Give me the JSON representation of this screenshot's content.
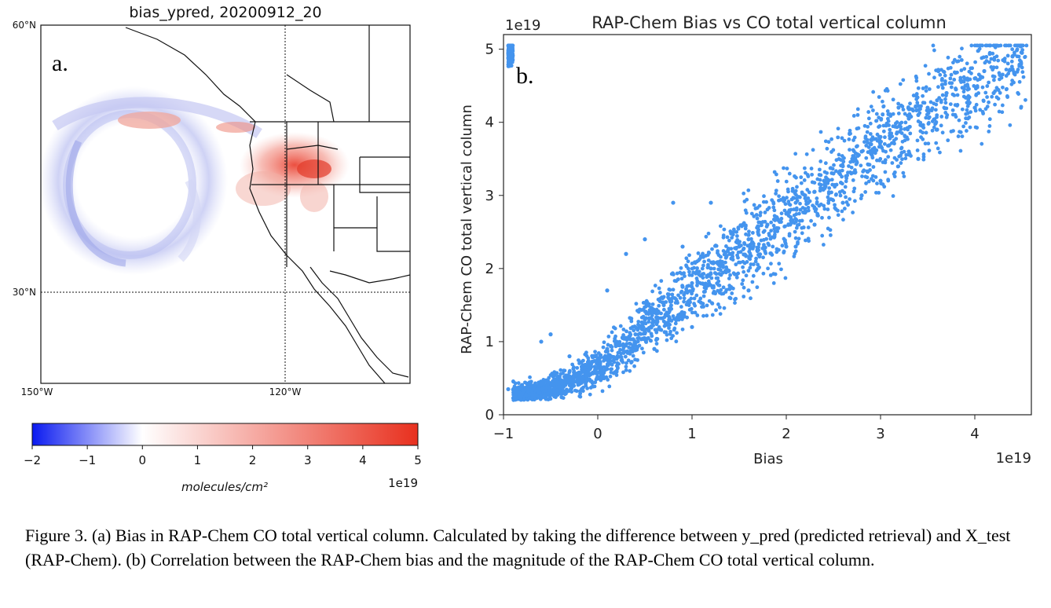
{
  "panel_a": {
    "panel_label": "a.",
    "title": "bias_ypred, 20200912_20",
    "lat_labels": [
      "60°N",
      "30°N"
    ],
    "lon_labels": [
      "150°W",
      "120°W"
    ],
    "colorbar": {
      "ticks": [
        "−2",
        "−1",
        "0",
        "1",
        "2",
        "3",
        "4",
        "5"
      ],
      "tick_values": [
        -2,
        -1,
        0,
        1,
        2,
        3,
        4,
        5
      ],
      "range": [
        -2,
        5
      ],
      "label": "molecules/cm²",
      "exponent": "1e19",
      "colors": [
        "#0a1af0",
        "#ffffff",
        "#e8301e"
      ]
    }
  },
  "panel_b": {
    "panel_label": "b.",
    "offset_text_y": "1e19",
    "offset_text_x": "1e19",
    "point_color": "#4494ee"
  },
  "chart_data": {
    "type": "scatter",
    "title": "RAP-Chem Bias vs CO total vertical column",
    "xlabel": "Bias",
    "ylabel": "RAP-Chem CO total vertical column",
    "x_scale": "1e19",
    "y_scale": "1e19",
    "xlim": [
      -1.0,
      4.6
    ],
    "ylim": [
      0,
      5.2
    ],
    "xticks": [
      "−1",
      "0",
      "1",
      "2",
      "3",
      "4"
    ],
    "xtick_values": [
      -1,
      0,
      1,
      2,
      3,
      4
    ],
    "yticks": [
      "0",
      "1",
      "2",
      "3",
      "4",
      "5"
    ],
    "ytick_values": [
      0,
      1,
      2,
      3,
      4,
      5
    ],
    "grid": false,
    "legend": "none",
    "trend": {
      "x": [
        -0.9,
        -0.5,
        0.0,
        0.5,
        1.0,
        1.5,
        2.0,
        2.5,
        3.0,
        3.5,
        4.0,
        4.5
      ],
      "y": [
        0.25,
        0.35,
        0.6,
        1.2,
        1.7,
        2.2,
        2.7,
        3.2,
        3.7,
        4.15,
        4.55,
        4.95
      ]
    },
    "points": {
      "x": [
        -0.95,
        -0.85,
        -0.7,
        -0.6,
        -0.5,
        -0.4,
        -0.3,
        -0.2,
        -0.1,
        0.0,
        0.05,
        0.1,
        0.2,
        0.3,
        0.4,
        0.5,
        0.6,
        0.7,
        0.8,
        0.9,
        1.0,
        1.1,
        1.2,
        1.3,
        1.4,
        1.5,
        1.6,
        1.7,
        1.8,
        1.9,
        2.0,
        2.1,
        2.2,
        2.3,
        2.4,
        2.5,
        2.6,
        2.7,
        2.8,
        2.9,
        3.0,
        3.1,
        3.2,
        3.3,
        3.4,
        3.5,
        3.6,
        3.7,
        3.8,
        3.9,
        4.0,
        4.1,
        4.2,
        4.3,
        4.4,
        4.5,
        -0.6,
        -0.5,
        0.1,
        0.3,
        0.5,
        0.8,
        0.9,
        1.2,
        1.4,
        1.7,
        2.1,
        2.3,
        2.6,
        3.0,
        3.3,
        3.6,
        4.0,
        -0.3,
        0.2,
        0.6,
        1.0,
        1.6,
        2.0,
        2.8,
        3.4,
        4.2
      ],
      "y": [
        0.35,
        0.3,
        0.25,
        0.3,
        0.4,
        0.45,
        0.5,
        0.55,
        0.6,
        0.65,
        0.5,
        0.9,
        1.0,
        1.05,
        1.1,
        1.3,
        1.4,
        1.5,
        1.6,
        1.75,
        1.8,
        1.9,
        2.0,
        2.1,
        2.2,
        2.3,
        2.4,
        2.5,
        2.6,
        2.7,
        2.75,
        2.9,
        3.0,
        3.05,
        3.2,
        3.3,
        3.4,
        3.5,
        3.6,
        3.7,
        3.8,
        3.85,
        3.95,
        4.05,
        4.1,
        4.2,
        4.3,
        4.4,
        4.45,
        4.5,
        4.6,
        4.7,
        4.75,
        4.85,
        4.9,
        4.95,
        1.0,
        1.1,
        1.7,
        2.2,
        2.4,
        2.9,
        2.3,
        2.9,
        1.6,
        2.0,
        2.3,
        2.6,
        2.9,
        3.2,
        3.6,
        3.9,
        4.2,
        0.8,
        0.6,
        0.9,
        1.2,
        1.7,
        2.3,
        3.0,
        3.5,
        4.4
      ]
    }
  },
  "caption": {
    "text": "Figure 3. (a) Bias in RAP-Chem CO total vertical column. Calculated by taking the difference between y_pred (predicted retrieval) and X_test (RAP-Chem). (b) Correlation between the RAP-Chem bias and the magnitude of the RAP-Chem CO total vertical column."
  }
}
